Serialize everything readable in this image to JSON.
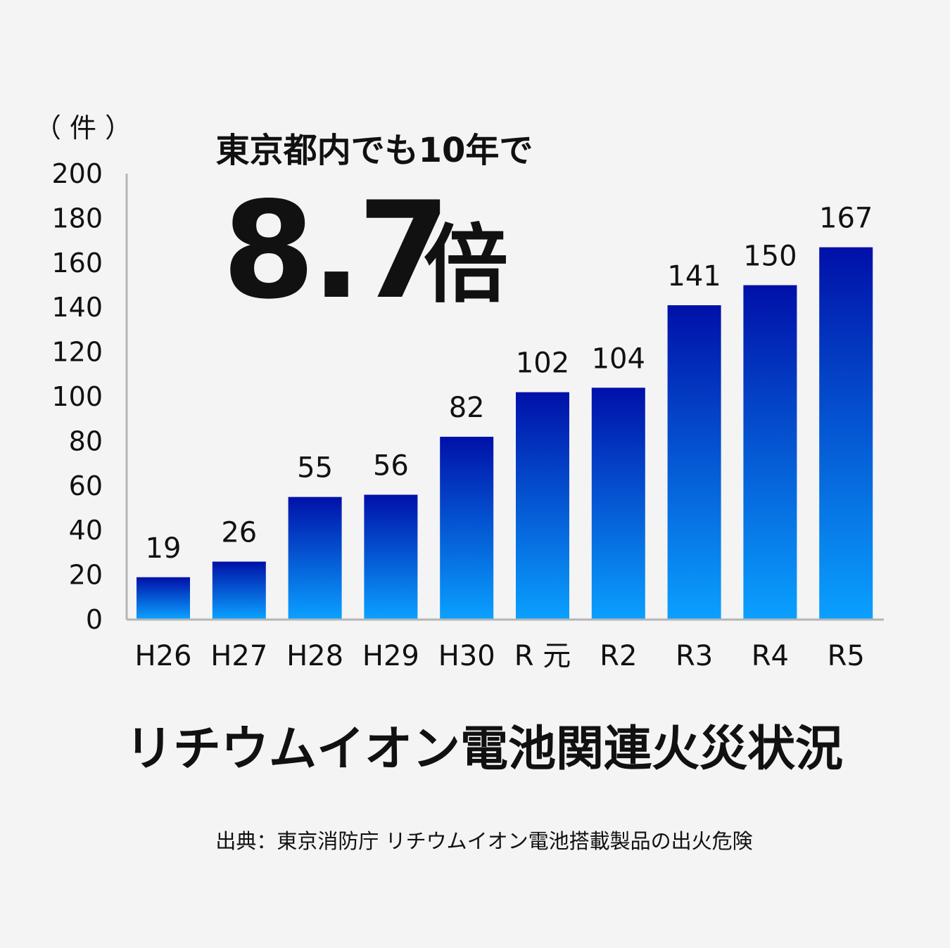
{
  "chart_data": {
    "type": "bar",
    "title": "リチウムイオン電池関連火災状況",
    "unit_label": "（ 件 ）",
    "categories": [
      "H26",
      "H27",
      "H28",
      "H29",
      "H30",
      "R 元",
      "R2",
      "R3",
      "R4",
      "R5"
    ],
    "values": [
      19,
      26,
      55,
      56,
      82,
      102,
      104,
      141,
      150,
      167
    ],
    "ylim": [
      0,
      200
    ],
    "yticks": [
      "0",
      "20",
      "40",
      "60",
      "80",
      "100",
      "120",
      "140",
      "160",
      "180",
      "200"
    ],
    "grid": false,
    "bar_color_top": "#0010a8",
    "bar_color_bottom": "#0aa0ff"
  },
  "headline": {
    "sub": "東京都内でも10年で",
    "number": "8.7",
    "unit": "倍"
  },
  "source": "出典：東京消防庁 リチウムイオン電池搭載製品の出火危険"
}
